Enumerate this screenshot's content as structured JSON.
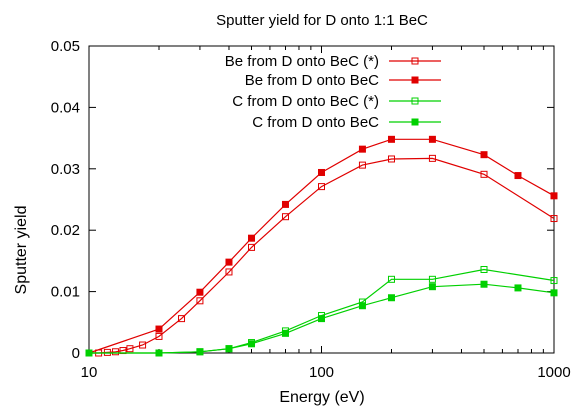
{
  "chart_data": {
    "type": "line",
    "title": "Sputter yield for D onto 1:1 BeC",
    "xlabel": "Energy (eV)",
    "ylabel": "Sputter yield",
    "xscale": "log",
    "xlim": [
      10,
      1000
    ],
    "ylim": [
      0,
      0.05
    ],
    "xticks": [
      10,
      100,
      1000
    ],
    "xtick_labels": [
      "10",
      "100",
      "1000"
    ],
    "yticks": [
      0,
      0.01,
      0.02,
      0.03,
      0.04,
      0.05
    ],
    "ytick_labels": [
      "0",
      "0.01",
      "0.02",
      "0.03",
      "0.04",
      "0.05"
    ],
    "grid": false,
    "legend_position": "top-right",
    "series": [
      {
        "name": "Be from D onto BeC (*)",
        "color": "#e00000",
        "marker": "open-square",
        "x": [
          10,
          11,
          12,
          13,
          14,
          15,
          17,
          20,
          25,
          30,
          40,
          50,
          70,
          100,
          150,
          200,
          300,
          500,
          1000
        ],
        "y": [
          0,
          0,
          0.0001,
          0.0002,
          0.0004,
          0.0007,
          0.0013,
          0.0027,
          0.0056,
          0.0085,
          0.0132,
          0.0172,
          0.0222,
          0.0271,
          0.0306,
          0.0316,
          0.0317,
          0.0291,
          0.0219
        ]
      },
      {
        "name": "Be from D onto BeC",
        "color": "#e00000",
        "marker": "filled-square",
        "x": [
          10,
          20,
          30,
          40,
          50,
          70,
          100,
          150,
          200,
          300,
          500,
          700,
          1000
        ],
        "y": [
          0,
          0.0039,
          0.0099,
          0.0148,
          0.0187,
          0.0242,
          0.0294,
          0.0332,
          0.0348,
          0.0348,
          0.0323,
          0.0289,
          0.0256
        ]
      },
      {
        "name": "C from D onto BeC (*)",
        "color": "#00d000",
        "marker": "open-square",
        "x": [
          10,
          20,
          30,
          40,
          50,
          70,
          100,
          150,
          200,
          300,
          500,
          1000
        ],
        "y": [
          0,
          0,
          0.0002,
          0.0007,
          0.0017,
          0.0036,
          0.0061,
          0.0083,
          0.012,
          0.012,
          0.0136,
          0.0118
        ]
      },
      {
        "name": "C from D onto BeC",
        "color": "#00d000",
        "marker": "filled-square",
        "x": [
          10,
          20,
          30,
          40,
          50,
          70,
          100,
          150,
          200,
          300,
          500,
          700,
          1000
        ],
        "y": [
          0,
          0,
          0.0002,
          0.0007,
          0.0015,
          0.0032,
          0.0056,
          0.0077,
          0.009,
          0.0108,
          0.0112,
          0.0106,
          0.0098
        ]
      }
    ]
  }
}
